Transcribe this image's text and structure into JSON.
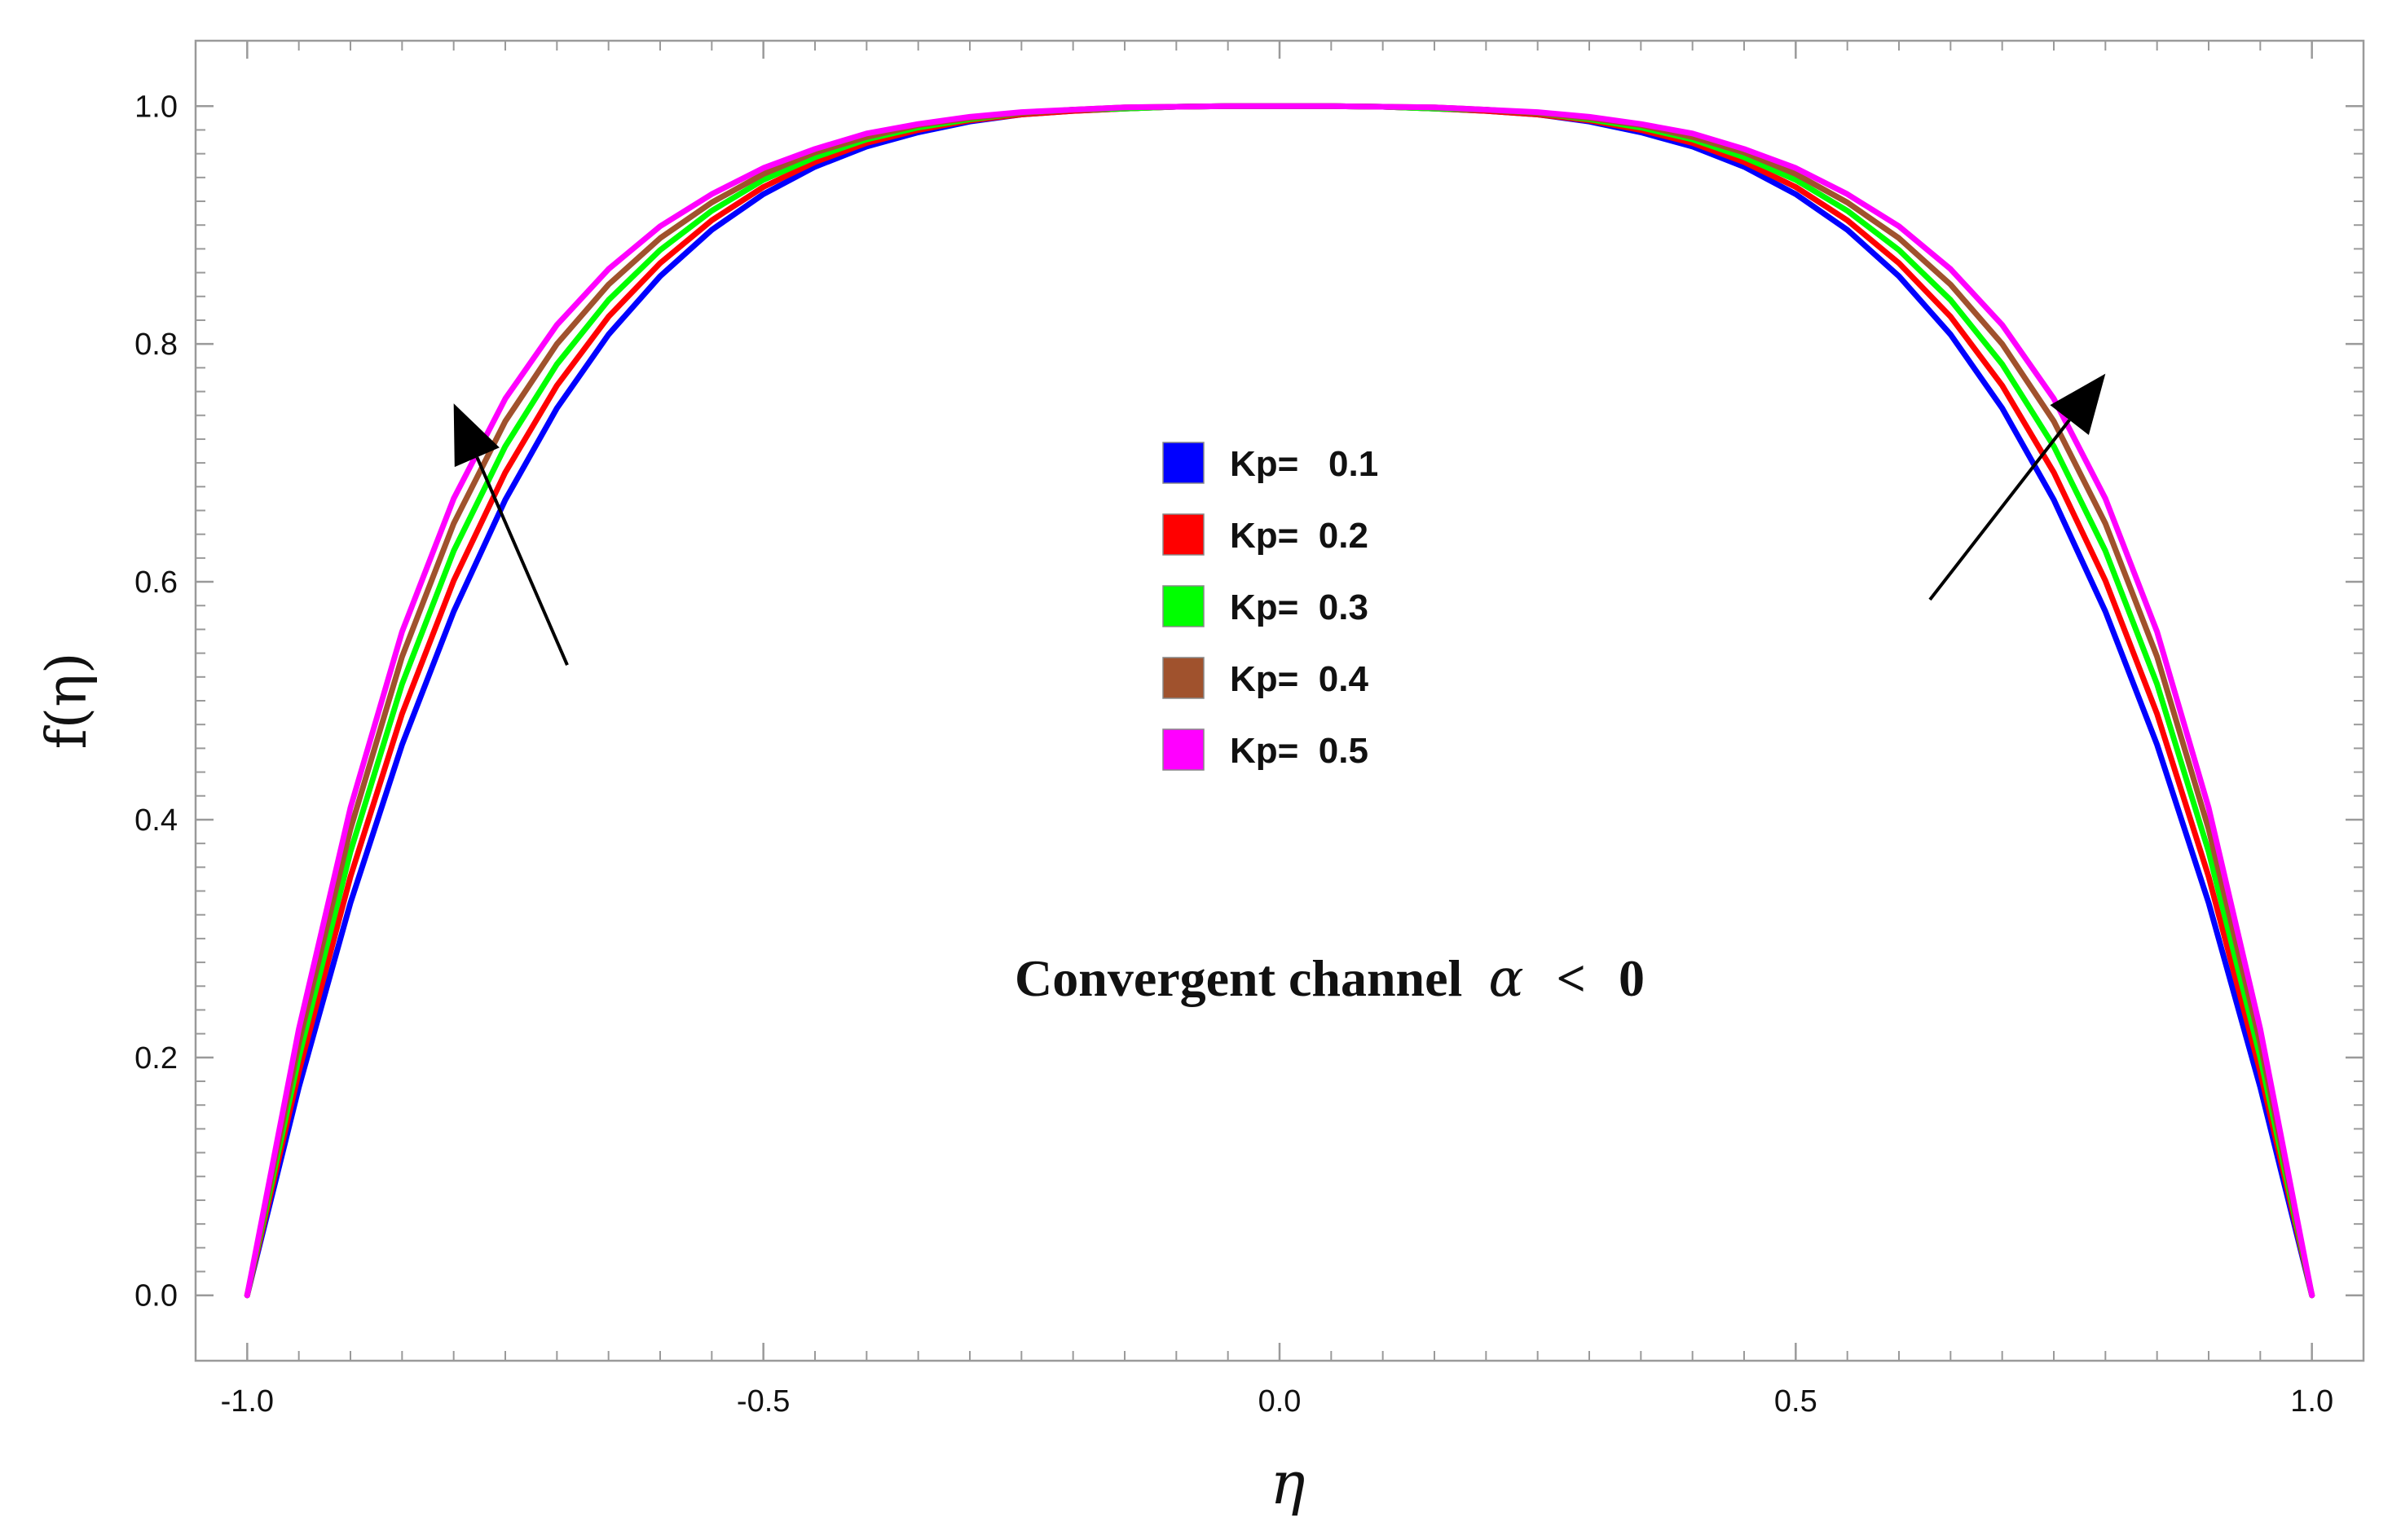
{
  "chart_data": {
    "type": "line",
    "xlabel": "η",
    "ylabel": "f(η)",
    "xlim": [
      -1.05,
      1.05
    ],
    "ylim": [
      -0.055,
      1.055
    ],
    "x_ticks": [
      -1.0,
      -0.5,
      0.0,
      0.5,
      1.0
    ],
    "x_tick_labels": [
      "-1.0",
      "-0.5",
      "0.0",
      "0.5",
      "1.0"
    ],
    "y_ticks": [
      0.0,
      0.2,
      0.4,
      0.6,
      0.8,
      1.0
    ],
    "y_tick_labels": [
      "0.0",
      "0.2",
      "0.4",
      "0.6",
      "0.8",
      "1.0"
    ],
    "grid": false,
    "frame": true,
    "legend_position": "center",
    "annotation": {
      "text": "Convergent channel",
      "symbol": "α",
      "relation": "<",
      "value": "0"
    },
    "arrows": [
      {
        "from": [
          -0.69,
          0.53
        ],
        "to": [
          -0.8,
          0.75
        ]
      },
      {
        "from": [
          0.63,
          0.585
        ],
        "to": [
          0.8,
          0.775
        ]
      }
    ],
    "series": [
      {
        "name": "Kp=   0.1",
        "color": "#0000ff",
        "x": [
          -1.0,
          -0.95,
          -0.9,
          -0.85,
          -0.8,
          -0.75,
          -0.7,
          -0.65,
          -0.6,
          -0.55,
          -0.5,
          -0.45,
          -0.4,
          -0.35,
          -0.3,
          -0.25,
          -0.2,
          -0.15,
          -0.1,
          -0.05,
          0.0,
          0.05,
          0.1,
          0.15,
          0.2,
          0.25,
          0.3,
          0.35,
          0.4,
          0.45,
          0.5,
          0.55,
          0.6,
          0.65,
          0.7,
          0.75,
          0.8,
          0.85,
          0.9,
          0.95,
          1.0
        ],
        "y": [
          0.0,
          0.175,
          0.33,
          0.463,
          0.575,
          0.669,
          0.746,
          0.808,
          0.857,
          0.896,
          0.926,
          0.949,
          0.966,
          0.978,
          0.987,
          0.993,
          0.996,
          0.998,
          0.9995,
          1.0,
          1.0,
          1.0,
          0.9995,
          0.998,
          0.996,
          0.993,
          0.987,
          0.978,
          0.966,
          0.949,
          0.926,
          0.896,
          0.857,
          0.808,
          0.746,
          0.669,
          0.575,
          0.463,
          0.33,
          0.175,
          0.0
        ]
      },
      {
        "name": "Kp=  0.2",
        "color": "#ff0000",
        "x": [
          -1.0,
          -0.95,
          -0.9,
          -0.85,
          -0.8,
          -0.75,
          -0.7,
          -0.65,
          -0.6,
          -0.55,
          -0.5,
          -0.45,
          -0.4,
          -0.35,
          -0.3,
          -0.25,
          -0.2,
          -0.15,
          -0.1,
          -0.05,
          0.0,
          0.05,
          0.1,
          0.15,
          0.2,
          0.25,
          0.3,
          0.35,
          0.4,
          0.45,
          0.5,
          0.55,
          0.6,
          0.65,
          0.7,
          0.75,
          0.8,
          0.85,
          0.9,
          0.95,
          1.0
        ],
        "y": [
          0.0,
          0.188,
          0.352,
          0.489,
          0.601,
          0.692,
          0.765,
          0.823,
          0.868,
          0.904,
          0.932,
          0.953,
          0.969,
          0.98,
          0.988,
          0.993,
          0.996,
          0.998,
          0.9995,
          1.0,
          1.0,
          1.0,
          0.9995,
          0.998,
          0.996,
          0.993,
          0.988,
          0.98,
          0.969,
          0.953,
          0.932,
          0.904,
          0.868,
          0.823,
          0.765,
          0.692,
          0.601,
          0.489,
          0.352,
          0.188,
          0.0
        ]
      },
      {
        "name": "Kp=  0.3",
        "color": "#00ff00",
        "x": [
          -1.0,
          -0.95,
          -0.9,
          -0.85,
          -0.8,
          -0.75,
          -0.7,
          -0.65,
          -0.6,
          -0.55,
          -0.5,
          -0.45,
          -0.4,
          -0.35,
          -0.3,
          -0.25,
          -0.2,
          -0.15,
          -0.1,
          -0.05,
          0.0,
          0.05,
          0.1,
          0.15,
          0.2,
          0.25,
          0.3,
          0.35,
          0.4,
          0.45,
          0.5,
          0.55,
          0.6,
          0.65,
          0.7,
          0.75,
          0.8,
          0.85,
          0.9,
          0.95,
          1.0
        ],
        "y": [
          0.0,
          0.2,
          0.373,
          0.514,
          0.626,
          0.714,
          0.783,
          0.837,
          0.879,
          0.912,
          0.938,
          0.957,
          0.972,
          0.982,
          0.989,
          0.994,
          0.997,
          0.998,
          0.9995,
          1.0,
          1.0,
          1.0,
          0.9995,
          0.998,
          0.997,
          0.994,
          0.989,
          0.982,
          0.972,
          0.957,
          0.938,
          0.912,
          0.879,
          0.837,
          0.783,
          0.714,
          0.626,
          0.514,
          0.373,
          0.2,
          0.0
        ]
      },
      {
        "name": "Kp=  0.4",
        "color": "#a0522d",
        "x": [
          -1.0,
          -0.95,
          -0.9,
          -0.85,
          -0.8,
          -0.75,
          -0.7,
          -0.65,
          -0.6,
          -0.55,
          -0.5,
          -0.45,
          -0.4,
          -0.35,
          -0.3,
          -0.25,
          -0.2,
          -0.15,
          -0.1,
          -0.05,
          0.0,
          0.05,
          0.1,
          0.15,
          0.2,
          0.25,
          0.3,
          0.35,
          0.4,
          0.45,
          0.5,
          0.55,
          0.6,
          0.65,
          0.7,
          0.75,
          0.8,
          0.85,
          0.9,
          0.95,
          1.0
        ],
        "y": [
          0.0,
          0.212,
          0.392,
          0.537,
          0.649,
          0.735,
          0.8,
          0.85,
          0.889,
          0.919,
          0.943,
          0.961,
          0.974,
          0.984,
          0.99,
          0.994,
          0.997,
          0.999,
          0.9995,
          1.0,
          1.0,
          1.0,
          0.9995,
          0.999,
          0.997,
          0.994,
          0.99,
          0.984,
          0.974,
          0.961,
          0.943,
          0.919,
          0.889,
          0.85,
          0.8,
          0.735,
          0.649,
          0.537,
          0.392,
          0.212,
          0.0
        ]
      },
      {
        "name": "Kp=  0.5",
        "color": "#ff00ff",
        "x": [
          -1.0,
          -0.95,
          -0.9,
          -0.85,
          -0.8,
          -0.75,
          -0.7,
          -0.65,
          -0.6,
          -0.55,
          -0.5,
          -0.45,
          -0.4,
          -0.35,
          -0.3,
          -0.25,
          -0.2,
          -0.15,
          -0.1,
          -0.05,
          0.0,
          0.05,
          0.1,
          0.15,
          0.2,
          0.25,
          0.3,
          0.35,
          0.4,
          0.45,
          0.5,
          0.55,
          0.6,
          0.65,
          0.7,
          0.75,
          0.8,
          0.85,
          0.9,
          0.95,
          1.0
        ],
        "y": [
          0.0,
          0.224,
          0.41,
          0.558,
          0.67,
          0.754,
          0.816,
          0.863,
          0.899,
          0.926,
          0.948,
          0.964,
          0.977,
          0.985,
          0.991,
          0.995,
          0.997,
          0.999,
          0.9995,
          1.0,
          1.0,
          1.0,
          0.9995,
          0.999,
          0.997,
          0.995,
          0.991,
          0.985,
          0.977,
          0.964,
          0.948,
          0.926,
          0.899,
          0.863,
          0.816,
          0.754,
          0.67,
          0.558,
          0.41,
          0.224,
          0.0
        ]
      }
    ]
  }
}
